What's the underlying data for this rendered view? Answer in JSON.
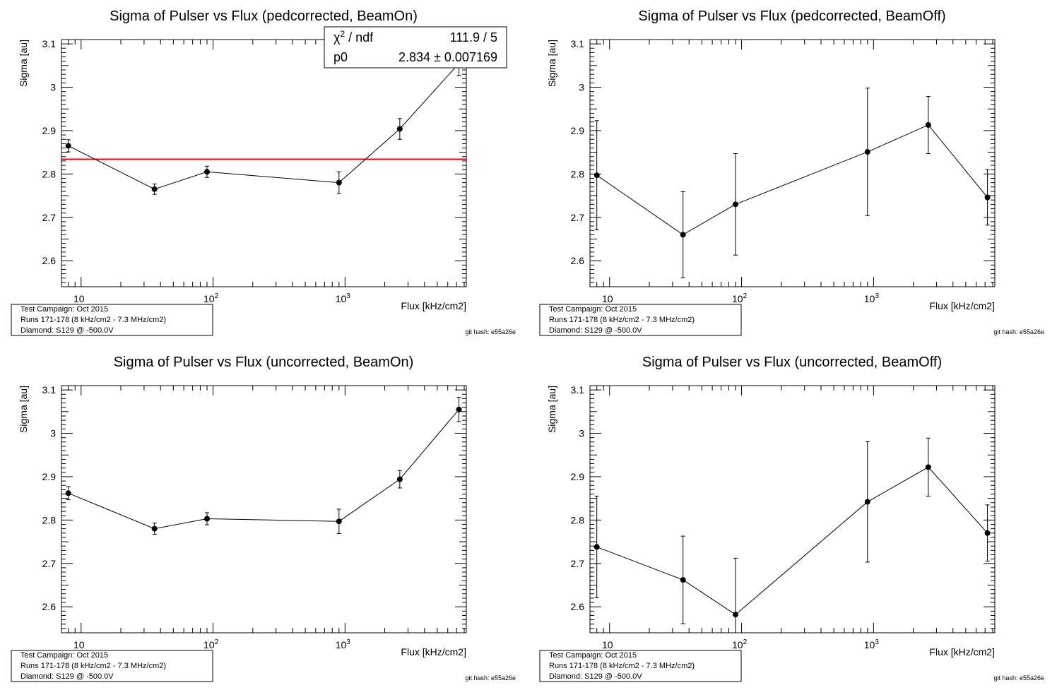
{
  "chart_data": [
    {
      "type": "scatter",
      "title": "Sigma of Pulser vs Flux (pedcorrected, BeamOn)",
      "xlabel": "Flux [kHz/cm2]",
      "ylabel": "Sigma [au]",
      "xscale": "log",
      "xlim": [
        7.1,
        8300
      ],
      "ylim": [
        2.54,
        3.11
      ],
      "x_ticks": [
        "10",
        "10^2",
        "10^3"
      ],
      "y_ticks": [
        "2.6",
        "2.7",
        "2.8",
        "2.9",
        "3",
        "3.1"
      ],
      "grid": false,
      "series": [
        {
          "x": [
            8,
            36,
            90,
            900,
            2600,
            7300
          ],
          "y": [
            2.865,
            2.765,
            2.805,
            2.78,
            2.904,
            3.055
          ],
          "yerr": [
            0.014,
            0.012,
            0.013,
            0.025,
            0.024,
            0.028
          ]
        }
      ],
      "fit": {
        "value": 2.834,
        "color": "#e8000b",
        "stats": {
          "chi2_label": "/ ndf",
          "chi2_value": "111.9 / 5",
          "p0_label": "p0",
          "p0_value": "2.834 ± 0.007169"
        }
      },
      "info": [
        "Test Campaign: Oct 2015",
        "Runs 171-178 (8 kHz/cm2 - 7.3 MHz/cm2)",
        "Diamond: S129 @ -500.0V"
      ],
      "git_hash": "git hash: e55a26e"
    },
    {
      "type": "scatter",
      "title": "Sigma of Pulser vs Flux (pedcorrected, BeamOff)",
      "xlabel": "Flux [kHz/cm2]",
      "ylabel": "Sigma [au]",
      "xscale": "log",
      "xlim": [
        7.1,
        8300
      ],
      "ylim": [
        2.54,
        3.11
      ],
      "x_ticks": [
        "10",
        "10^2",
        "10^3"
      ],
      "y_ticks": [
        "2.6",
        "2.7",
        "2.8",
        "2.9",
        "3",
        "3.1"
      ],
      "grid": false,
      "series": [
        {
          "x": [
            8,
            36,
            90,
            900,
            2600,
            7300
          ],
          "y": [
            2.797,
            2.66,
            2.73,
            2.851,
            2.913,
            2.746
          ],
          "yerr": [
            0.126,
            0.099,
            0.117,
            0.147,
            0.066,
            0.064
          ]
        }
      ],
      "info": [
        "Test Campaign: Oct 2015",
        "Runs 171-178 (8 kHz/cm2 - 7.3 MHz/cm2)",
        "Diamond: S129 @ -500.0V"
      ],
      "git_hash": "git hash: e55a26e"
    },
    {
      "type": "scatter",
      "title": "Sigma of Pulser vs Flux (uncorrected, BeamOn)",
      "xlabel": "Flux [kHz/cm2]",
      "ylabel": "Sigma [au]",
      "xscale": "log",
      "xlim": [
        7.1,
        8300
      ],
      "ylim": [
        2.54,
        3.11
      ],
      "x_ticks": [
        "10",
        "10^2",
        "10^3"
      ],
      "y_ticks": [
        "2.6",
        "2.7",
        "2.8",
        "2.9",
        "3",
        "3.1"
      ],
      "grid": false,
      "series": [
        {
          "x": [
            8,
            36,
            90,
            900,
            2600,
            7300
          ],
          "y": [
            2.862,
            2.78,
            2.803,
            2.797,
            2.894,
            3.055
          ],
          "yerr": [
            0.015,
            0.013,
            0.014,
            0.028,
            0.02,
            0.028
          ]
        }
      ],
      "info": [
        "Test Campaign: Oct 2015",
        "Runs 171-178 (8 kHz/cm2 - 7.3 MHz/cm2)",
        "Diamond: S129 @ -500.0V"
      ],
      "git_hash": "git hash: e55a26e"
    },
    {
      "type": "scatter",
      "title": "Sigma of Pulser vs Flux (uncorrected, BeamOff)",
      "xlabel": "Flux [kHz/cm2]",
      "ylabel": "Sigma [au]",
      "xscale": "log",
      "xlim": [
        7.1,
        8300
      ],
      "ylim": [
        2.54,
        3.11
      ],
      "x_ticks": [
        "10",
        "10^2",
        "10^3"
      ],
      "y_ticks": [
        "2.6",
        "2.7",
        "2.8",
        "2.9",
        "3",
        "3.1"
      ],
      "grid": false,
      "series": [
        {
          "x": [
            8,
            36,
            90,
            900,
            2600,
            7300
          ],
          "y": [
            2.738,
            2.662,
            2.582,
            2.842,
            2.922,
            2.77
          ],
          "yerr": [
            0.117,
            0.101,
            0.13,
            0.139,
            0.067,
            0.065
          ]
        }
      ],
      "info": [
        "Test Campaign: Oct 2015",
        "Runs 171-178 (8 kHz/cm2 - 7.3 MHz/cm2)",
        "Diamond: S129 @ -500.0V"
      ],
      "git_hash": "git hash: e55a26e"
    }
  ]
}
